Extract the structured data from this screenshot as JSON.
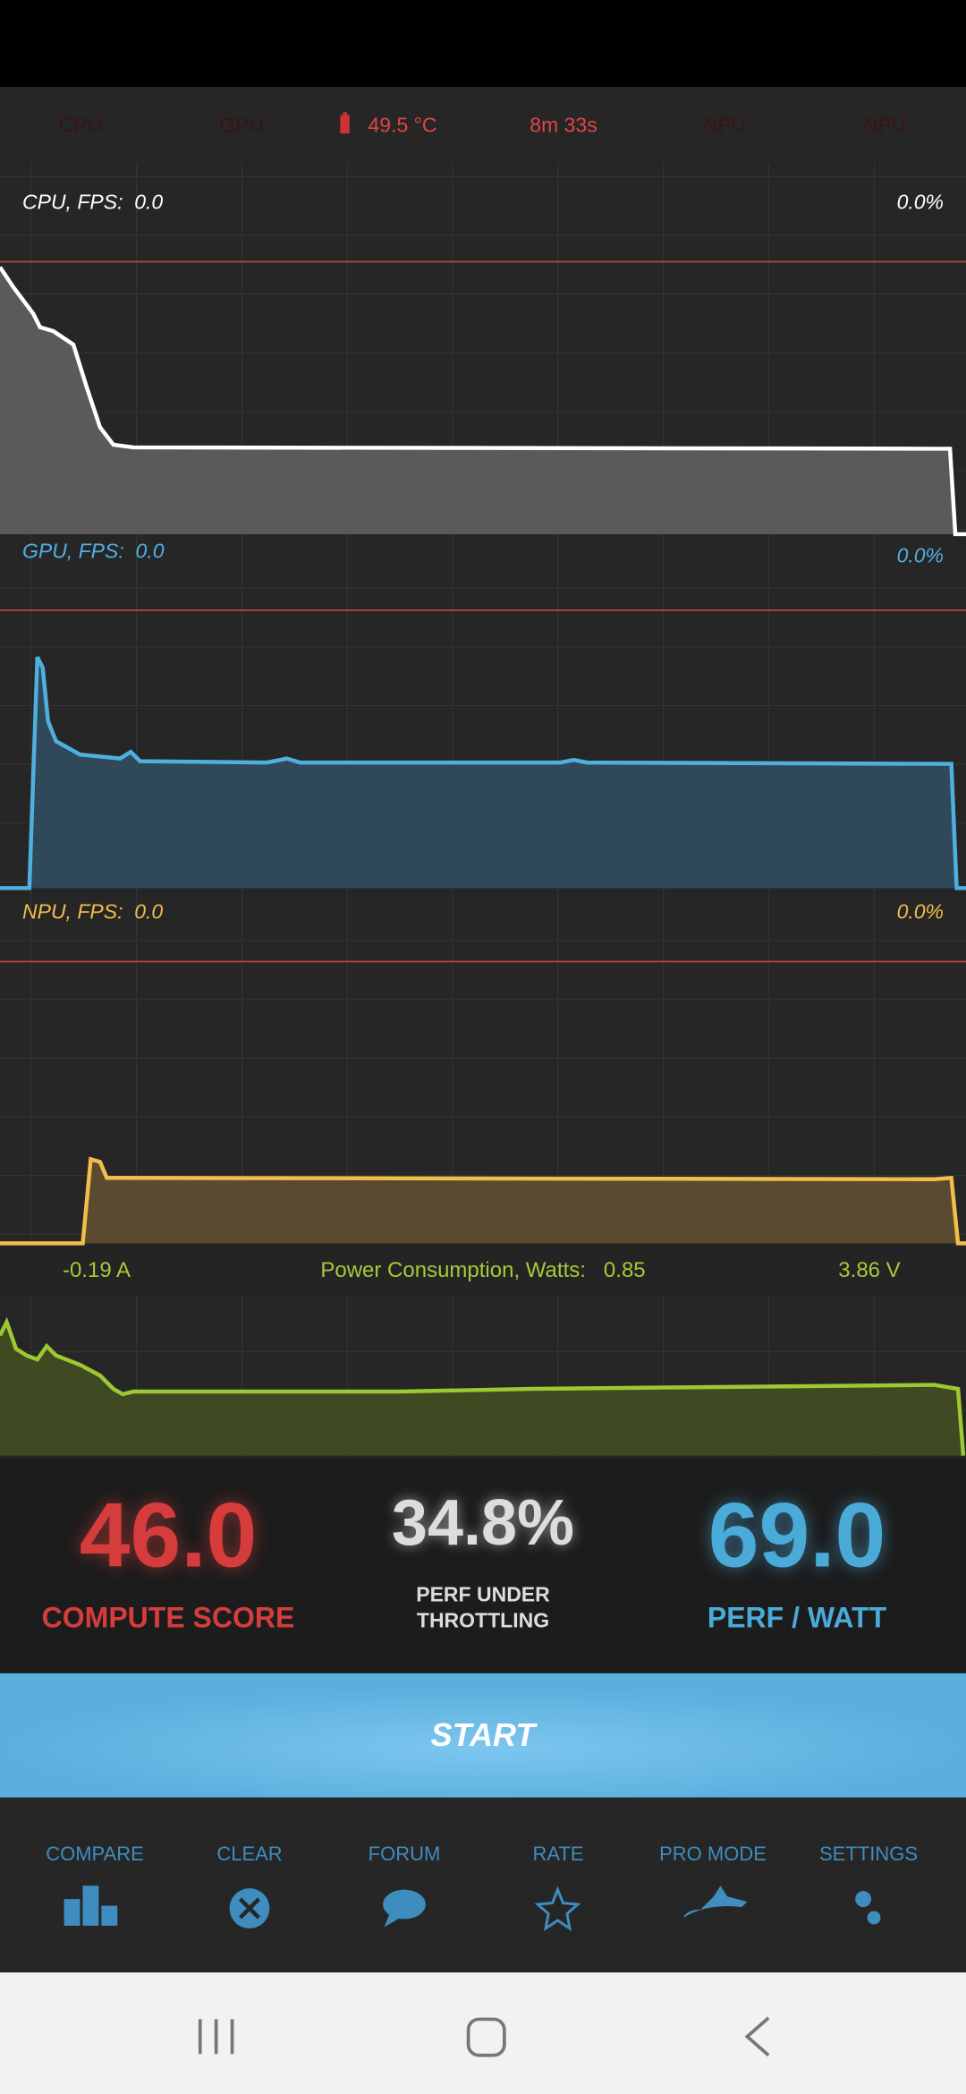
{
  "status_bar": {
    "cpu": "CPU",
    "gpu": "GPU",
    "temperature": "49.5 °C",
    "elapsed": "8m 33s",
    "npu_1": "NPU",
    "npu_2": "NPU"
  },
  "graphs": [
    {
      "label": "CPU, FPS:",
      "fps": "0.0",
      "load": "0.0%"
    },
    {
      "label": "GPU, FPS:",
      "fps": "0.0",
      "load": "0.0%"
    },
    {
      "label": "NPU, FPS:",
      "fps": "0.0",
      "load": "0.0%"
    }
  ],
  "power": {
    "current": "-0.19 A",
    "label": "Power Consumption, Watts:",
    "watts": "0.85",
    "voltage": "3.86 V"
  },
  "scores": {
    "compute": {
      "value": "46.0",
      "label": "COMPUTE SCORE"
    },
    "throttling": {
      "value": "34.8%",
      "label_lines": [
        "PERF UNDER",
        "THROTTLING"
      ]
    },
    "perf_watt": {
      "value": "69.0",
      "label": "PERF / WATT"
    }
  },
  "start_button": "START",
  "nav": [
    "COMPARE",
    "CLEAR",
    "FORUM",
    "RATE",
    "PRO MODE",
    "SETTINGS"
  ]
}
